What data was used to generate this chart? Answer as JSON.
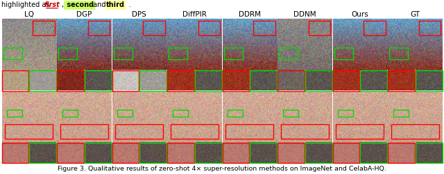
{
  "title_text": "Figure 3. Qualitative results of zero-shot 4× super-resolution methods on ImageNet and CelabA-HQ.",
  "columns": [
    "LQ",
    "DGP",
    "DPS",
    "DiffPIR",
    "DDRM",
    "DDNM",
    "Ours",
    "GT"
  ],
  "n_cols": 8,
  "fig_width": 6.4,
  "fig_height": 2.52,
  "background_color": "#ffffff",
  "header_fontsize": 7.0,
  "col_label_fontsize": 7.5,
  "caption_fontsize": 6.8,
  "red_box_color": "#ff0000",
  "green_box_color": "#00dd00",
  "second_bg": "#ccff66",
  "third_bg": "#ffff99",
  "car_colors": {
    "LQ": [
      165,
      150,
      130
    ],
    "DGP": [
      130,
      45,
      35
    ],
    "DPS": [
      130,
      45,
      35
    ],
    "DiffPIR": [
      140,
      50,
      35
    ],
    "DDRM": [
      140,
      50,
      35
    ],
    "DDNM": [
      120,
      110,
      105
    ],
    "Ours": [
      140,
      50,
      35
    ],
    "GT": [
      140,
      50,
      35
    ]
  },
  "motel_colors": {
    "LQ": [
      180,
      160,
      130
    ],
    "DGP": [
      130,
      40,
      30
    ],
    "DPS": [
      200,
      195,
      190
    ],
    "DiffPIR": [
      160,
      50,
      30
    ],
    "DDRM": [
      155,
      50,
      30
    ],
    "DDNM": [
      110,
      100,
      95
    ],
    "Ours": [
      160,
      50,
      30
    ],
    "GT": [
      160,
      50,
      30
    ]
  },
  "face_color": [
    200,
    160,
    140
  ],
  "mouth_color": [
    185,
    120,
    110
  ]
}
